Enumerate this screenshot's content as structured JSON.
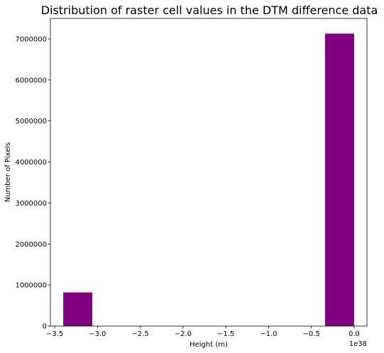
{
  "chart_data": {
    "type": "bar",
    "title": "Distribution of raster cell values in the DTM difference data",
    "xlabel": "Height (m)",
    "ylabel": "Number of Pixels",
    "x_offset_label": "1e38",
    "x_scale_exponent": 38,
    "xlim": [
      -3.55,
      0.15
    ],
    "ylim": [
      0,
      7500000
    ],
    "xticks": [
      -3.5,
      -3.0,
      -2.5,
      -2.0,
      -1.5,
      -1.0,
      -0.5,
      0.0
    ],
    "xtick_labels": [
      "−3.5",
      "−3.0",
      "−2.5",
      "−2.0",
      "−1.5",
      "−1.0",
      "−0.5",
      "0.0"
    ],
    "yticks": [
      0,
      1000000,
      2000000,
      3000000,
      4000000,
      5000000,
      6000000,
      7000000
    ],
    "ytick_labels": [
      "0",
      "1000000",
      "2000000",
      "3000000",
      "4000000",
      "5000000",
      "6000000",
      "7000000"
    ],
    "grid": false,
    "bars": [
      {
        "x_start": -3.4,
        "x_end": -3.06,
        "value": 820000
      },
      {
        "x_start": -0.34,
        "x_end": 0.0,
        "value": 7130000
      }
    ],
    "bar_color": "#800080"
  }
}
